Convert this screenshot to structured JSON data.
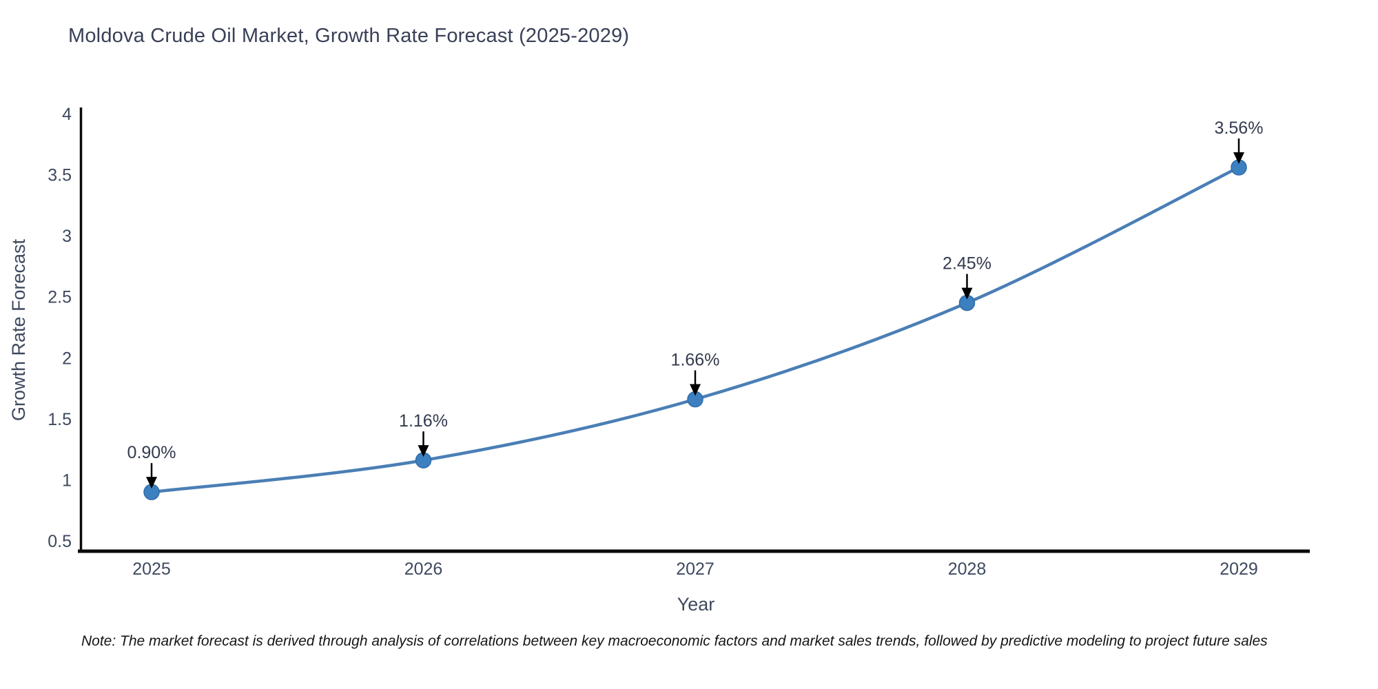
{
  "chart": {
    "title": "Moldova Crude Oil Market, Growth Rate Forecast (2025-2029)"
  },
  "footnote": {
    "text": "Note: The market forecast is derived through analysis of correlations between key macroeconomic factors and market sales trends, followed by predictive modeling to project future sales"
  },
  "chart_data": {
    "type": "line",
    "title": "Moldova Crude Oil Market, Growth Rate Forecast (2025-2029)",
    "xlabel": "Year",
    "ylabel": "Growth Rate Forecast",
    "x": [
      2025,
      2026,
      2027,
      2028,
      2029
    ],
    "values": [
      0.9,
      1.16,
      1.66,
      2.45,
      3.56
    ],
    "point_labels": [
      "0.90%",
      "1.16%",
      "1.66%",
      "2.45%",
      "3.56%"
    ],
    "yticks": [
      0.5,
      1,
      1.5,
      2,
      2.5,
      3,
      3.5,
      4
    ],
    "xticks": [
      2025,
      2026,
      2027,
      2028,
      2029
    ],
    "ylim": [
      0.26,
      4.05
    ],
    "xlim": [
      2024.73,
      2029.27
    ],
    "grid": false,
    "legend": null,
    "line_smoothing": "spline",
    "marker_shape": "circle",
    "annotation_style": "arrow-down",
    "colors": {
      "line": "#4a7fb5",
      "marker_fill": "#3c80c0",
      "marker_edge": "#2f6ba8",
      "axis": "#0a0a0a",
      "tick_label": "#3e495e",
      "axis_title": "#3e495e",
      "chart_title": "#394057",
      "annotation_text": "#333a4d",
      "annotation_arrow": "#000000",
      "note_text": "#151515",
      "background": "#ffffff"
    }
  }
}
